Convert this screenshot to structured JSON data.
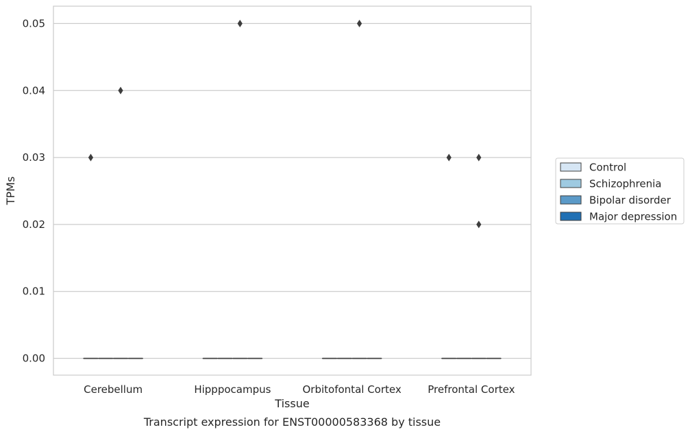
{
  "chart_data": {
    "type": "box",
    "categories": [
      "Cerebellum",
      "Hipppocampus",
      "Orbitofontal Cortex",
      "Prefrontal Cortex"
    ],
    "xlabel": "Tissue",
    "ylabel": "TPMs",
    "caption": "Transcript expression for ENST00000583368 by tissue",
    "ylim": [
      -0.0025,
      0.0526
    ],
    "yticks": [
      0.0,
      0.01,
      0.02,
      0.03,
      0.04,
      0.05
    ],
    "ytick_labels": [
      "0.00",
      "0.01",
      "0.02",
      "0.03",
      "0.04",
      "0.05"
    ],
    "grid": "horizontal",
    "legend_position": "right",
    "series": [
      {
        "name": "Control",
        "color": "#d6e6f4",
        "boxes": [
          {
            "q1": 0,
            "median": 0,
            "q3": 0,
            "whisker_low": 0,
            "whisker_high": 0,
            "outliers": [
              0.03
            ]
          },
          {
            "q1": 0,
            "median": 0,
            "q3": 0,
            "whisker_low": 0,
            "whisker_high": 0,
            "outliers": []
          },
          {
            "q1": 0,
            "median": 0,
            "q3": 0,
            "whisker_low": 0,
            "whisker_high": 0,
            "outliers": []
          },
          {
            "q1": 0,
            "median": 0,
            "q3": 0,
            "whisker_low": 0,
            "whisker_high": 0,
            "outliers": [
              0.03
            ]
          }
        ]
      },
      {
        "name": "Schizophrenia",
        "color": "#9ecae1",
        "boxes": [
          {
            "q1": 0,
            "median": 0,
            "q3": 0,
            "whisker_low": 0,
            "whisker_high": 0,
            "outliers": []
          },
          {
            "q1": 0,
            "median": 0,
            "q3": 0,
            "whisker_low": 0,
            "whisker_high": 0,
            "outliers": []
          },
          {
            "q1": 0,
            "median": 0,
            "q3": 0,
            "whisker_low": 0,
            "whisker_high": 0,
            "outliers": []
          },
          {
            "q1": 0,
            "median": 0,
            "q3": 0,
            "whisker_low": 0,
            "whisker_high": 0,
            "outliers": []
          }
        ]
      },
      {
        "name": "Bipolar disorder",
        "color": "#5b9ac8",
        "boxes": [
          {
            "q1": 0,
            "median": 0,
            "q3": 0,
            "whisker_low": 0,
            "whisker_high": 0,
            "outliers": [
              0.04
            ]
          },
          {
            "q1": 0,
            "median": 0,
            "q3": 0,
            "whisker_low": 0,
            "whisker_high": 0,
            "outliers": [
              0.05
            ]
          },
          {
            "q1": 0,
            "median": 0,
            "q3": 0,
            "whisker_low": 0,
            "whisker_high": 0,
            "outliers": [
              0.05
            ]
          },
          {
            "q1": 0,
            "median": 0,
            "q3": 0,
            "whisker_low": 0,
            "whisker_high": 0,
            "outliers": [
              0.03,
              0.02
            ]
          }
        ]
      },
      {
        "name": "Major depression",
        "color": "#2070b4",
        "boxes": [
          {
            "q1": 0,
            "median": 0,
            "q3": 0,
            "whisker_low": 0,
            "whisker_high": 0,
            "outliers": []
          },
          {
            "q1": 0,
            "median": 0,
            "q3": 0,
            "whisker_low": 0,
            "whisker_high": 0,
            "outliers": []
          },
          {
            "q1": 0,
            "median": 0,
            "q3": 0,
            "whisker_low": 0,
            "whisker_high": 0,
            "outliers": []
          },
          {
            "q1": 0,
            "median": 0,
            "q3": 0,
            "whisker_low": 0,
            "whisker_high": 0,
            "outliers": []
          }
        ]
      }
    ]
  }
}
